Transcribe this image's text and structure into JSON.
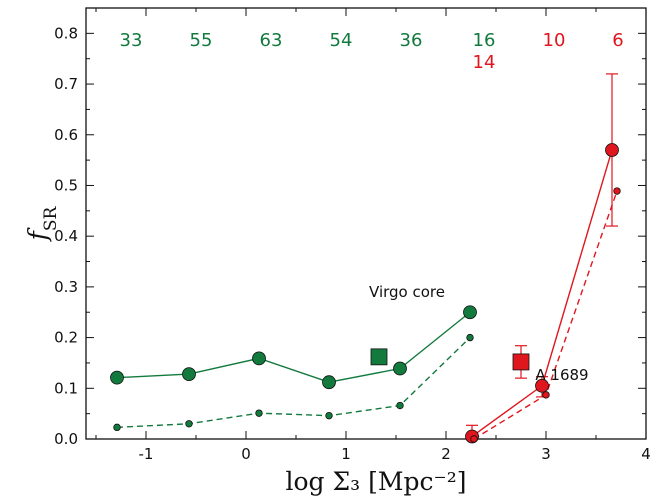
{
  "chart_data": {
    "type": "line",
    "xlabel": "log Σ₃  [Mpc⁻²]",
    "ylabel": "f_SR",
    "xlim": [
      -1.6,
      4.0
    ],
    "ylim": [
      0.0,
      0.85
    ],
    "xticks": [
      -1,
      0,
      1,
      2,
      3,
      4
    ],
    "xtick_labels": [
      "-1",
      "0",
      "1",
      "2",
      "3",
      "4"
    ],
    "yticks": [
      0.0,
      0.1,
      0.2,
      0.3,
      0.4,
      0.5,
      0.6,
      0.7,
      0.8
    ],
    "ytick_labels": [
      "0.0",
      "0.1",
      "0.2",
      "0.3",
      "0.4",
      "0.5",
      "0.6",
      "0.7",
      "0.8"
    ],
    "colors": {
      "green": "#137a3e",
      "red": "#e0161e"
    },
    "series": [
      {
        "color": "green",
        "line": "solid",
        "marker": "circle-large",
        "x": [
          -1.29,
          -0.57,
          0.13,
          0.83,
          1.54,
          2.24
        ],
        "y": [
          0.121,
          0.128,
          0.159,
          0.112,
          0.139,
          0.25
        ]
      },
      {
        "color": "green",
        "line": "dashed",
        "marker": "circle-small",
        "x": [
          -1.29,
          -0.57,
          0.13,
          0.83,
          1.54,
          2.24
        ],
        "y": [
          0.023,
          0.03,
          0.051,
          0.046,
          0.066,
          0.2
        ]
      },
      {
        "color": "red",
        "line": "solid",
        "marker": "circle-large",
        "x": [
          2.26,
          2.96,
          3.66
        ],
        "y": [
          0.005,
          0.105,
          0.57
        ],
        "yerr_low": [
          0.0,
          0.022,
          0.15
        ],
        "yerr_high": [
          0.022,
          0.018,
          0.15
        ]
      },
      {
        "color": "red",
        "line": "dashed",
        "marker": "circle-small",
        "x": [
          2.28,
          3.0,
          3.71
        ],
        "y": [
          0.0,
          0.087,
          0.489
        ]
      }
    ],
    "squares": [
      {
        "color": "green",
        "x": 1.33,
        "y": 0.162
      },
      {
        "color": "red",
        "x": 2.75,
        "y": 0.152,
        "yerr_low": 0.032,
        "yerr_high": 0.032
      }
    ],
    "counts": [
      {
        "x": -1.15,
        "lines": [
          {
            "text": "33",
            "color": "green"
          }
        ]
      },
      {
        "x": -0.45,
        "lines": [
          {
            "text": "55",
            "color": "green"
          }
        ]
      },
      {
        "x": 0.25,
        "lines": [
          {
            "text": "63",
            "color": "green"
          }
        ]
      },
      {
        "x": 0.95,
        "lines": [
          {
            "text": "54",
            "color": "green"
          }
        ]
      },
      {
        "x": 1.65,
        "lines": [
          {
            "text": "36",
            "color": "green"
          }
        ]
      },
      {
        "x": 2.38,
        "lines": [
          {
            "text": "16",
            "color": "green"
          },
          {
            "text": "14",
            "color": "red"
          }
        ]
      },
      {
        "x": 3.08,
        "lines": [
          {
            "text": "10",
            "color": "red"
          }
        ]
      },
      {
        "x": 3.72,
        "lines": [
          {
            "text": "6",
            "color": "red"
          }
        ]
      }
    ],
    "annotations": [
      {
        "text": "Virgo core",
        "x": 1.61,
        "y": 0.29
      },
      {
        "text": "A 1689",
        "x": 3.16,
        "y": 0.126
      }
    ]
  }
}
